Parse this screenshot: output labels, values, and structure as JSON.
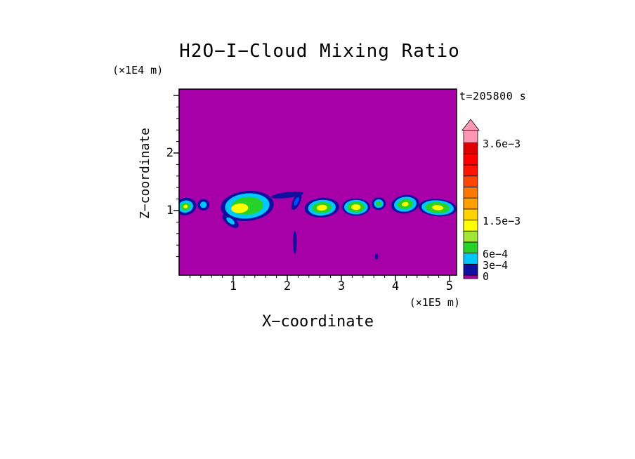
{
  "chart_data": {
    "type": "heatmap",
    "title": "H2O−I−Cloud Mixing Ratio",
    "time_label": "t=205800 s",
    "xlabel": "X−coordinate",
    "x_units": "(×1E5 m)",
    "ylabel": "Z−coordinate",
    "y_units": "(×1E4 m)",
    "xlim": [
      0,
      5.13
    ],
    "ylim": [
      -0.12,
      3.11
    ],
    "x_ticks_major": [
      1,
      2,
      3,
      4,
      5
    ],
    "y_ticks_major": [
      1,
      2
    ],
    "minor_tick_step": 0.2,
    "field": "H2O ice cloud mixing ratio",
    "background_value": 0,
    "background_color": "#a800a8",
    "contour_levels": [
      0,
      0.0003,
      0.0006,
      0.0009,
      0.0012,
      0.0015,
      0.0018,
      0.0021,
      0.0024,
      0.0027,
      0.003,
      0.0033,
      0.0036
    ],
    "band_colors": [
      "#0f0fa0",
      "#00c8ff",
      "#28d228",
      "#a0e632",
      "#ffff00",
      "#ffd200",
      "#ffa000",
      "#ff7800",
      "#ff4600",
      "#ff1400",
      "#ff0000",
      "#e10000"
    ],
    "overflow_color": "#ff96b4",
    "colorbar_tick_labels": [
      {
        "text": "3.6e−3",
        "value": 0.0036
      },
      {
        "text": "1.5e−3",
        "value": 0.0015
      },
      {
        "text": "6e−4",
        "value": 0.0006
      },
      {
        "text": "3e−4",
        "value": 0.0003
      },
      {
        "text": "0",
        "value": 0
      }
    ],
    "cloud_palette": {
      "navy": "#0f0fa0",
      "blue": "#0050ff",
      "cyan": "#00c8ff",
      "green": "#28d228",
      "yellow": "#ffff00"
    },
    "clouds": [
      {
        "x": 0.12,
        "z": 1.07,
        "rx": 0.2,
        "rz": 0.15,
        "rot": -12,
        "layers": [
          {
            "c": "navy",
            "s": 1
          },
          {
            "c": "cyan",
            "s": 0.7
          },
          {
            "c": "green",
            "s": 0.45
          },
          {
            "c": "yellow",
            "s": 0.2
          }
        ]
      },
      {
        "x": 0.45,
        "z": 1.1,
        "rx": 0.11,
        "rz": 0.1,
        "rot": 0,
        "layers": [
          {
            "c": "navy",
            "s": 1
          },
          {
            "c": "cyan",
            "s": 0.55
          }
        ]
      },
      {
        "x": 1.26,
        "z": 1.08,
        "rx": 0.49,
        "rz": 0.26,
        "rot": -5,
        "layers": [
          {
            "c": "navy",
            "s": 1
          },
          {
            "c": "cyan",
            "s": 0.84
          },
          {
            "c": "green",
            "s": 0.6
          },
          {
            "c": "yellow",
            "s": 0.32,
            "dx": -0.14,
            "dz": -0.04
          }
        ]
      },
      {
        "x": 0.95,
        "z": 0.82,
        "rx": 0.18,
        "rz": 0.08,
        "rot": 38,
        "layers": [
          {
            "c": "navy",
            "s": 1
          },
          {
            "c": "cyan",
            "s": 0.5
          }
        ]
      },
      {
        "x": 2.0,
        "z": 1.27,
        "rx": 0.3,
        "rz": 0.05,
        "rot": -7,
        "layers": [
          {
            "c": "navy",
            "s": 1
          }
        ]
      },
      {
        "x": 2.17,
        "z": 1.16,
        "rx": 0.07,
        "rz": 0.16,
        "rot": 25,
        "layers": [
          {
            "c": "navy",
            "s": 1
          },
          {
            "c": "blue",
            "s": 0.5
          }
        ]
      },
      {
        "x": 2.64,
        "z": 1.05,
        "rx": 0.32,
        "rz": 0.17,
        "rot": -4,
        "layers": [
          {
            "c": "navy",
            "s": 1
          },
          {
            "c": "cyan",
            "s": 0.8
          },
          {
            "c": "green",
            "s": 0.57
          },
          {
            "c": "yellow",
            "s": 0.3
          }
        ]
      },
      {
        "x": 3.27,
        "z": 1.06,
        "rx": 0.26,
        "rz": 0.15,
        "rot": 0,
        "layers": [
          {
            "c": "navy",
            "s": 1
          },
          {
            "c": "cyan",
            "s": 0.84
          },
          {
            "c": "green",
            "s": 0.62
          },
          {
            "c": "yellow",
            "s": 0.33
          }
        ]
      },
      {
        "x": 3.69,
        "z": 1.12,
        "rx": 0.13,
        "rz": 0.11,
        "rot": 0,
        "layers": [
          {
            "c": "navy",
            "s": 1
          },
          {
            "c": "cyan",
            "s": 0.68
          },
          {
            "c": "green",
            "s": 0.38
          }
        ]
      },
      {
        "x": 4.18,
        "z": 1.11,
        "rx": 0.26,
        "rz": 0.16,
        "rot": -8,
        "layers": [
          {
            "c": "navy",
            "s": 1
          },
          {
            "c": "cyan",
            "s": 0.8
          },
          {
            "c": "green",
            "s": 0.55
          },
          {
            "c": "yellow",
            "s": 0.24
          }
        ]
      },
      {
        "x": 4.78,
        "z": 1.05,
        "rx": 0.35,
        "rz": 0.15,
        "rot": 4,
        "layers": [
          {
            "c": "navy",
            "s": 1
          },
          {
            "c": "cyan",
            "s": 0.85
          },
          {
            "c": "green",
            "s": 0.64
          },
          {
            "c": "yellow",
            "s": 0.3
          }
        ]
      },
      {
        "x": 2.14,
        "z": 0.45,
        "rx": 0.035,
        "rz": 0.2,
        "rot": 0,
        "layers": [
          {
            "c": "navy",
            "s": 1
          }
        ]
      },
      {
        "x": 3.65,
        "z": 0.2,
        "rx": 0.03,
        "rz": 0.05,
        "rot": 0,
        "layers": [
          {
            "c": "navy",
            "s": 1
          }
        ]
      }
    ]
  }
}
